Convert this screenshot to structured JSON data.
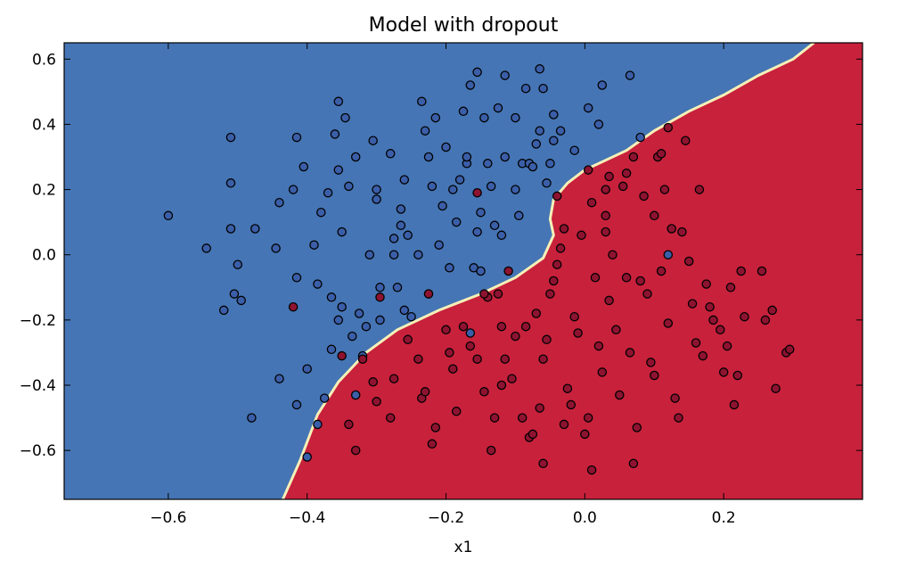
{
  "chart_data": {
    "type": "scatter",
    "title": "Model with dropout",
    "xlabel": "x1",
    "ylabel": "",
    "xlim": [
      -0.75,
      0.4
    ],
    "ylim": [
      -0.75,
      0.65
    ],
    "xticks": [
      -0.6,
      -0.4,
      -0.2,
      0.0,
      0.2
    ],
    "xtick_labels": [
      "−0.6",
      "−0.4",
      "−0.2",
      "0.0",
      "0.2"
    ],
    "yticks": [
      0.6,
      0.4,
      0.2,
      0.0,
      -0.2,
      -0.4,
      -0.6
    ],
    "ytick_labels": [
      "0.6",
      "0.4",
      "0.2",
      "0.0",
      "−0.2",
      "−0.4",
      "−0.6"
    ],
    "grid": false,
    "colors": {
      "region_blue": "#4575b4",
      "region_red": "#c8213c",
      "boundary": "#f5f0b8",
      "point_blue": "#3b5ea8",
      "point_red": "#8e1330",
      "point_edge": "#000000"
    },
    "decision_boundary": [
      [
        -0.435,
        -0.75
      ],
      [
        -0.41,
        -0.63
      ],
      [
        -0.385,
        -0.49
      ],
      [
        -0.355,
        -0.39
      ],
      [
        -0.315,
        -0.3
      ],
      [
        -0.27,
        -0.23
      ],
      [
        -0.21,
        -0.17
      ],
      [
        -0.15,
        -0.12
      ],
      [
        -0.1,
        -0.07
      ],
      [
        -0.06,
        -0.01
      ],
      [
        -0.045,
        0.06
      ],
      [
        -0.05,
        0.11
      ],
      [
        -0.045,
        0.17
      ],
      [
        -0.025,
        0.22
      ],
      [
        0.0,
        0.26
      ],
      [
        0.03,
        0.29
      ],
      [
        0.06,
        0.32
      ],
      [
        0.1,
        0.38
      ],
      [
        0.15,
        0.44
      ],
      [
        0.2,
        0.49
      ],
      [
        0.25,
        0.55
      ],
      [
        0.3,
        0.6
      ],
      [
        0.33,
        0.65
      ]
    ],
    "series": [
      {
        "class": "blue",
        "points": [
          [
            -0.6,
            0.12
          ],
          [
            -0.545,
            0.02
          ],
          [
            -0.52,
            -0.17
          ],
          [
            -0.51,
            0.36
          ],
          [
            -0.51,
            0.22
          ],
          [
            -0.51,
            0.08
          ],
          [
            -0.505,
            -0.12
          ],
          [
            -0.5,
            -0.03
          ],
          [
            -0.495,
            -0.14
          ],
          [
            -0.475,
            0.08
          ],
          [
            -0.48,
            -0.5
          ],
          [
            -0.44,
            0.16
          ],
          [
            -0.445,
            0.02
          ],
          [
            -0.44,
            -0.38
          ],
          [
            -0.42,
            0.2
          ],
          [
            -0.415,
            0.36
          ],
          [
            -0.415,
            -0.07
          ],
          [
            -0.415,
            -0.46
          ],
          [
            -0.405,
            0.27
          ],
          [
            -0.4,
            -0.35
          ],
          [
            -0.4,
            -0.62
          ],
          [
            -0.39,
            0.03
          ],
          [
            -0.385,
            -0.09
          ],
          [
            -0.385,
            -0.52
          ],
          [
            -0.38,
            0.13
          ],
          [
            -0.375,
            -0.44
          ],
          [
            -0.37,
            0.19
          ],
          [
            -0.365,
            -0.29
          ],
          [
            -0.365,
            -0.13
          ],
          [
            -0.36,
            0.37
          ],
          [
            -0.355,
            0.26
          ],
          [
            -0.355,
            -0.2
          ],
          [
            -0.355,
            0.47
          ],
          [
            -0.35,
            -0.16
          ],
          [
            -0.35,
            0.07
          ],
          [
            -0.345,
            0.42
          ],
          [
            -0.34,
            0.21
          ],
          [
            -0.335,
            -0.25
          ],
          [
            -0.33,
            -0.43
          ],
          [
            -0.33,
            0.3
          ],
          [
            -0.325,
            -0.18
          ],
          [
            -0.32,
            -0.31
          ],
          [
            -0.315,
            -0.22
          ],
          [
            -0.31,
            0.0
          ],
          [
            -0.305,
            0.35
          ],
          [
            -0.3,
            0.2
          ],
          [
            -0.3,
            0.17
          ],
          [
            -0.295,
            -0.1
          ],
          [
            -0.295,
            -0.2
          ],
          [
            -0.28,
            0.31
          ],
          [
            -0.275,
            0.05
          ],
          [
            -0.275,
            0.0
          ],
          [
            -0.27,
            -0.1
          ],
          [
            -0.265,
            0.09
          ],
          [
            -0.265,
            0.14
          ],
          [
            -0.26,
            0.23
          ],
          [
            -0.26,
            -0.17
          ],
          [
            -0.255,
            0.06
          ],
          [
            -0.25,
            -0.19
          ],
          [
            -0.24,
            0.0
          ],
          [
            -0.235,
            0.47
          ],
          [
            -0.23,
            0.38
          ],
          [
            -0.225,
            0.3
          ],
          [
            -0.225,
            -0.12
          ],
          [
            -0.22,
            0.21
          ],
          [
            -0.215,
            0.42
          ],
          [
            -0.21,
            0.03
          ],
          [
            -0.205,
            0.15
          ],
          [
            -0.2,
            0.33
          ],
          [
            -0.195,
            -0.04
          ],
          [
            -0.19,
            0.2
          ],
          [
            -0.185,
            0.1
          ],
          [
            -0.18,
            0.23
          ],
          [
            -0.175,
            0.44
          ],
          [
            -0.17,
            0.28
          ],
          [
            -0.17,
            0.3
          ],
          [
            -0.165,
            0.52
          ],
          [
            -0.16,
            -0.04
          ],
          [
            -0.155,
            0.56
          ],
          [
            -0.155,
            0.07
          ],
          [
            -0.15,
            0.13
          ],
          [
            -0.15,
            -0.05
          ],
          [
            -0.145,
            0.42
          ],
          [
            -0.14,
            0.28
          ],
          [
            -0.135,
            0.21
          ],
          [
            -0.13,
            0.09
          ],
          [
            -0.125,
            0.45
          ],
          [
            -0.12,
            0.06
          ],
          [
            -0.115,
            0.55
          ],
          [
            -0.115,
            0.3
          ],
          [
            -0.1,
            0.42
          ],
          [
            -0.1,
            0.2
          ],
          [
            -0.095,
            0.12
          ],
          [
            -0.09,
            0.28
          ],
          [
            -0.085,
            0.51
          ],
          [
            -0.08,
            0.28
          ],
          [
            -0.075,
            0.27
          ],
          [
            -0.07,
            0.34
          ],
          [
            -0.065,
            0.57
          ],
          [
            -0.065,
            0.38
          ],
          [
            -0.06,
            0.51
          ],
          [
            -0.055,
            0.22
          ],
          [
            -0.05,
            0.28
          ],
          [
            -0.045,
            0.35
          ],
          [
            -0.045,
            0.43
          ],
          [
            -0.035,
            0.38
          ],
          [
            -0.015,
            0.32
          ],
          [
            0.005,
            0.45
          ],
          [
            0.02,
            0.4
          ],
          [
            0.025,
            0.52
          ],
          [
            0.065,
            0.55
          ],
          [
            0.08,
            0.36
          ],
          [
            0.12,
            0.0
          ],
          [
            -0.165,
            -0.24
          ]
        ]
      },
      {
        "class": "red",
        "points": [
          [
            -0.42,
            -0.16
          ],
          [
            -0.35,
            -0.31
          ],
          [
            -0.295,
            -0.13
          ],
          [
            -0.225,
            -0.12
          ],
          [
            -0.155,
            0.19
          ],
          [
            -0.03,
            0.08
          ],
          [
            0.005,
            0.26
          ],
          [
            0.03,
            0.2
          ],
          [
            0.035,
            0.24
          ],
          [
            -0.04,
            0.18
          ],
          [
            -0.34,
            -0.52
          ],
          [
            -0.33,
            -0.6
          ],
          [
            -0.32,
            -0.32
          ],
          [
            -0.305,
            -0.39
          ],
          [
            -0.3,
            -0.45
          ],
          [
            -0.28,
            -0.5
          ],
          [
            -0.275,
            -0.38
          ],
          [
            -0.255,
            -0.26
          ],
          [
            -0.24,
            -0.32
          ],
          [
            -0.235,
            -0.44
          ],
          [
            -0.23,
            -0.42
          ],
          [
            -0.22,
            -0.58
          ],
          [
            -0.215,
            -0.53
          ],
          [
            -0.2,
            -0.23
          ],
          [
            -0.195,
            -0.3
          ],
          [
            -0.19,
            -0.35
          ],
          [
            -0.185,
            -0.48
          ],
          [
            -0.175,
            -0.22
          ],
          [
            -0.165,
            -0.28
          ],
          [
            -0.155,
            -0.32
          ],
          [
            -0.145,
            -0.42
          ],
          [
            -0.14,
            -0.13
          ],
          [
            -0.135,
            -0.6
          ],
          [
            -0.13,
            -0.5
          ],
          [
            -0.125,
            -0.12
          ],
          [
            -0.12,
            -0.22
          ],
          [
            -0.115,
            -0.32
          ],
          [
            -0.105,
            -0.38
          ],
          [
            -0.1,
            -0.25
          ],
          [
            -0.09,
            -0.5
          ],
          [
            -0.085,
            -0.22
          ],
          [
            -0.08,
            -0.56
          ],
          [
            -0.075,
            -0.55
          ],
          [
            -0.07,
            -0.18
          ],
          [
            -0.065,
            -0.47
          ],
          [
            -0.06,
            -0.32
          ],
          [
            -0.055,
            -0.26
          ],
          [
            -0.05,
            -0.12
          ],
          [
            -0.045,
            -0.08
          ],
          [
            -0.04,
            -0.03
          ],
          [
            -0.035,
            0.02
          ],
          [
            -0.03,
            -0.52
          ],
          [
            -0.025,
            -0.41
          ],
          [
            -0.02,
            -0.46
          ],
          [
            -0.015,
            -0.19
          ],
          [
            -0.01,
            -0.24
          ],
          [
            -0.005,
            0.06
          ],
          [
            0.0,
            -0.55
          ],
          [
            0.005,
            -0.5
          ],
          [
            0.01,
            0.16
          ],
          [
            0.015,
            -0.07
          ],
          [
            0.02,
            -0.28
          ],
          [
            0.025,
            -0.36
          ],
          [
            0.03,
            0.07
          ],
          [
            0.035,
            -0.14
          ],
          [
            0.04,
            0.0
          ],
          [
            0.045,
            -0.23
          ],
          [
            0.05,
            -0.43
          ],
          [
            0.055,
            0.21
          ],
          [
            0.06,
            -0.07
          ],
          [
            0.065,
            -0.3
          ],
          [
            0.07,
            0.3
          ],
          [
            0.075,
            -0.53
          ],
          [
            0.08,
            -0.08
          ],
          [
            0.085,
            0.18
          ],
          [
            0.09,
            -0.12
          ],
          [
            0.095,
            -0.33
          ],
          [
            0.1,
            -0.37
          ],
          [
            0.105,
            0.3
          ],
          [
            0.11,
            -0.05
          ],
          [
            0.115,
            0.2
          ],
          [
            0.12,
            -0.21
          ],
          [
            0.125,
            0.08
          ],
          [
            0.13,
            -0.44
          ],
          [
            0.135,
            -0.5
          ],
          [
            0.14,
            0.07
          ],
          [
            0.145,
            0.35
          ],
          [
            0.15,
            -0.02
          ],
          [
            0.155,
            -0.15
          ],
          [
            0.16,
            -0.27
          ],
          [
            0.165,
            0.2
          ],
          [
            0.17,
            -0.31
          ],
          [
            0.175,
            -0.09
          ],
          [
            0.18,
            -0.16
          ],
          [
            0.185,
            -0.2
          ],
          [
            0.195,
            -0.23
          ],
          [
            0.2,
            -0.36
          ],
          [
            0.205,
            -0.28
          ],
          [
            0.21,
            -0.1
          ],
          [
            0.215,
            -0.46
          ],
          [
            0.22,
            -0.37
          ],
          [
            0.225,
            -0.05
          ],
          [
            0.23,
            -0.19
          ],
          [
            0.255,
            -0.05
          ],
          [
            0.26,
            -0.2
          ],
          [
            0.27,
            -0.17
          ],
          [
            0.275,
            -0.41
          ],
          [
            0.29,
            -0.3
          ],
          [
            0.295,
            -0.29
          ],
          [
            0.12,
            0.39
          ],
          [
            0.11,
            0.31
          ],
          [
            -0.145,
            -0.12
          ],
          [
            -0.06,
            -0.64
          ],
          [
            0.01,
            -0.66
          ],
          [
            0.07,
            -0.64
          ],
          [
            0.03,
            0.12
          ],
          [
            0.06,
            0.25
          ],
          [
            0.1,
            0.12
          ],
          [
            -0.11,
            -0.05
          ],
          [
            -0.12,
            -0.4
          ]
        ]
      }
    ]
  }
}
